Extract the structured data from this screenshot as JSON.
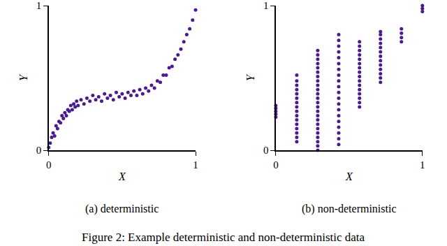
{
  "chart_data": [
    {
      "type": "scatter",
      "title": "(a) deterministic",
      "x_label": "X",
      "y_label": "Y",
      "color": "#4b1a8c",
      "marker": "circle",
      "x": [
        0,
        0.01,
        0.02,
        0.03,
        0.04,
        0.05,
        0.06,
        0.07,
        0.08,
        0.09,
        0.1,
        0.11,
        0.12,
        0.13,
        0.14,
        0.15,
        0.16,
        0.17,
        0.18,
        0.19,
        0.2,
        0.22,
        0.24,
        0.26,
        0.28,
        0.3,
        0.32,
        0.34,
        0.36,
        0.38,
        0.4,
        0.42,
        0.44,
        0.46,
        0.48,
        0.5,
        0.52,
        0.54,
        0.56,
        0.58,
        0.6,
        0.62,
        0.64,
        0.66,
        0.68,
        0.7,
        0.72,
        0.74,
        0.76,
        0.78,
        0.8,
        0.82,
        0.84,
        0.86,
        0.88,
        0.9,
        0.92,
        0.94,
        0.96,
        0.98,
        1.0
      ],
      "values": [
        0.02,
        0.05,
        0.09,
        0.12,
        0.1,
        0.17,
        0.15,
        0.2,
        0.19,
        0.24,
        0.22,
        0.26,
        0.24,
        0.28,
        0.27,
        0.31,
        0.28,
        0.32,
        0.3,
        0.34,
        0.31,
        0.35,
        0.32,
        0.36,
        0.34,
        0.38,
        0.35,
        0.37,
        0.34,
        0.39,
        0.36,
        0.38,
        0.35,
        0.4,
        0.37,
        0.39,
        0.36,
        0.4,
        0.38,
        0.41,
        0.38,
        0.42,
        0.39,
        0.43,
        0.41,
        0.45,
        0.43,
        0.48,
        0.47,
        0.52,
        0.52,
        0.57,
        0.58,
        0.63,
        0.66,
        0.7,
        0.75,
        0.8,
        0.84,
        0.9,
        0.97
      ],
      "xlim": [
        0,
        1
      ],
      "ylim": [
        0,
        1
      ],
      "xticks": [
        0,
        1
      ],
      "yticks": [
        0,
        1
      ]
    },
    {
      "type": "scatter",
      "title": "(b) non-deterministic",
      "x_label": "X",
      "y_label": "Y",
      "color": "#4b1a8c",
      "marker": "circle",
      "x": [
        0,
        0,
        0,
        0,
        0,
        0.143,
        0.143,
        0.143,
        0.143,
        0.143,
        0.143,
        0.143,
        0.143,
        0.143,
        0.143,
        0.143,
        0.143,
        0.143,
        0.143,
        0.143,
        0.143,
        0.286,
        0.286,
        0.286,
        0.286,
        0.286,
        0.286,
        0.286,
        0.286,
        0.286,
        0.286,
        0.286,
        0.286,
        0.286,
        0.286,
        0.286,
        0.286,
        0.286,
        0.286,
        0.286,
        0.286,
        0.286,
        0.286,
        0.286,
        0.286,
        0.429,
        0.429,
        0.429,
        0.429,
        0.429,
        0.429,
        0.429,
        0.429,
        0.429,
        0.429,
        0.429,
        0.429,
        0.429,
        0.429,
        0.429,
        0.429,
        0.429,
        0.429,
        0.429,
        0.429,
        0.571,
        0.571,
        0.571,
        0.571,
        0.571,
        0.571,
        0.571,
        0.571,
        0.571,
        0.571,
        0.571,
        0.571,
        0.571,
        0.571,
        0.571,
        0.571,
        0.714,
        0.714,
        0.714,
        0.714,
        0.714,
        0.714,
        0.714,
        0.714,
        0.714,
        0.714,
        0.714,
        0.714,
        0.714,
        0.857,
        0.857,
        0.857,
        0.857,
        1,
        1,
        1
      ],
      "values": [
        0.23,
        0.25,
        0.27,
        0.29,
        0.31,
        0.06,
        0.09,
        0.12,
        0.15,
        0.18,
        0.21,
        0.24,
        0.27,
        0.3,
        0.33,
        0.36,
        0.39,
        0.42,
        0.45,
        0.48,
        0.52,
        0,
        0.03,
        0.06,
        0.09,
        0.12,
        0.15,
        0.18,
        0.21,
        0.24,
        0.27,
        0.3,
        0.33,
        0.36,
        0.39,
        0.42,
        0.45,
        0.48,
        0.51,
        0.54,
        0.57,
        0.6,
        0.63,
        0.66,
        0.69,
        0.04,
        0.08,
        0.12,
        0.16,
        0.2,
        0.24,
        0.28,
        0.32,
        0.36,
        0.4,
        0.44,
        0.48,
        0.52,
        0.56,
        0.6,
        0.64,
        0.68,
        0.72,
        0.76,
        0.8,
        0.3,
        0.33,
        0.36,
        0.39,
        0.42,
        0.45,
        0.48,
        0.51,
        0.54,
        0.57,
        0.6,
        0.63,
        0.66,
        0.69,
        0.72,
        0.75,
        0.47,
        0.5,
        0.53,
        0.56,
        0.59,
        0.62,
        0.65,
        0.68,
        0.71,
        0.74,
        0.77,
        0.8,
        0.82,
        0.75,
        0.78,
        0.81,
        0.84,
        0.96,
        0.98,
        1.0
      ],
      "xlim": [
        0,
        1
      ],
      "ylim": [
        0,
        1
      ],
      "xticks": [
        0,
        1
      ],
      "yticks": [
        0,
        1
      ]
    }
  ],
  "caption": "Figure 2: Example deterministic and non-deterministic data"
}
